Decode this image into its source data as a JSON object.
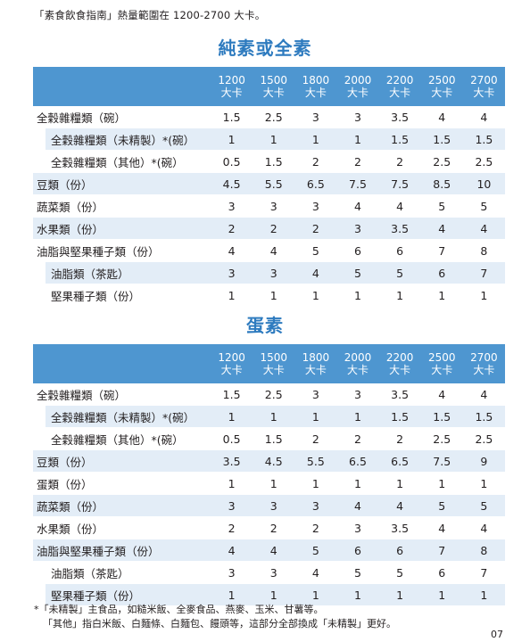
{
  "intro": "「素食飲食指南」熱量範圍在 1200-2700 大卡。",
  "columns": [
    "1200",
    "1500",
    "1800",
    "2000",
    "2200",
    "2500",
    "2700"
  ],
  "unit": "大卡",
  "sections": [
    {
      "title": "純素或全素",
      "rows": [
        {
          "label": "全穀雜糧類（碗）",
          "sub": false,
          "shade": false,
          "values": [
            "1.5",
            "2.5",
            "3",
            "3",
            "3.5",
            "4",
            "4"
          ]
        },
        {
          "label": "全穀雜糧類（未精製）*(碗）",
          "sub": true,
          "shade": true,
          "values": [
            "1",
            "1",
            "1",
            "1",
            "1.5",
            "1.5",
            "1.5"
          ]
        },
        {
          "label": "全穀雜糧類（其他）*(碗）",
          "sub": true,
          "shade": false,
          "values": [
            "0.5",
            "1.5",
            "2",
            "2",
            "2",
            "2.5",
            "2.5"
          ]
        },
        {
          "label": "豆類（份）",
          "sub": false,
          "shade": true,
          "values": [
            "4.5",
            "5.5",
            "6.5",
            "7.5",
            "7.5",
            "8.5",
            "10"
          ]
        },
        {
          "label": "蔬菜類（份）",
          "sub": false,
          "shade": false,
          "values": [
            "3",
            "3",
            "3",
            "4",
            "4",
            "5",
            "5"
          ]
        },
        {
          "label": "水果類（份）",
          "sub": false,
          "shade": true,
          "values": [
            "2",
            "2",
            "2",
            "3",
            "3.5",
            "4",
            "4"
          ]
        },
        {
          "label": "油脂與堅果種子類（份）",
          "sub": false,
          "shade": false,
          "values": [
            "4",
            "4",
            "5",
            "6",
            "6",
            "7",
            "8"
          ]
        },
        {
          "label": "油脂類（茶匙）",
          "sub": true,
          "shade": true,
          "values": [
            "3",
            "3",
            "4",
            "5",
            "5",
            "6",
            "7"
          ]
        },
        {
          "label": "堅果種子類（份）",
          "sub": true,
          "shade": false,
          "values": [
            "1",
            "1",
            "1",
            "1",
            "1",
            "1",
            "1"
          ]
        }
      ]
    },
    {
      "title": "蛋素",
      "rows": [
        {
          "label": "全穀雜糧類（碗）",
          "sub": false,
          "shade": false,
          "values": [
            "1.5",
            "2.5",
            "3",
            "3",
            "3.5",
            "4",
            "4"
          ]
        },
        {
          "label": "全穀雜糧類（未精製）*(碗）",
          "sub": true,
          "shade": true,
          "values": [
            "1",
            "1",
            "1",
            "1",
            "1.5",
            "1.5",
            "1.5"
          ]
        },
        {
          "label": "全穀雜糧類（其他）*(碗）",
          "sub": true,
          "shade": false,
          "values": [
            "0.5",
            "1.5",
            "2",
            "2",
            "2",
            "2.5",
            "2.5"
          ]
        },
        {
          "label": "豆類（份）",
          "sub": false,
          "shade": true,
          "values": [
            "3.5",
            "4.5",
            "5.5",
            "6.5",
            "6.5",
            "7.5",
            "9"
          ]
        },
        {
          "label": "蛋類（份）",
          "sub": false,
          "shade": false,
          "values": [
            "1",
            "1",
            "1",
            "1",
            "1",
            "1",
            "1"
          ]
        },
        {
          "label": "蔬菜類（份）",
          "sub": false,
          "shade": true,
          "values": [
            "3",
            "3",
            "3",
            "4",
            "4",
            "5",
            "5"
          ]
        },
        {
          "label": "水果類（份）",
          "sub": false,
          "shade": false,
          "values": [
            "2",
            "2",
            "2",
            "3",
            "3.5",
            "4",
            "4"
          ]
        },
        {
          "label": "油脂與堅果種子類（份）",
          "sub": false,
          "shade": true,
          "values": [
            "4",
            "4",
            "5",
            "6",
            "6",
            "7",
            "8"
          ]
        },
        {
          "label": "油脂類（茶匙）",
          "sub": true,
          "shade": false,
          "values": [
            "3",
            "3",
            "4",
            "5",
            "5",
            "6",
            "7"
          ]
        },
        {
          "label": "堅果種子類（份）",
          "sub": true,
          "shade": true,
          "values": [
            "1",
            "1",
            "1",
            "1",
            "1",
            "1",
            "1"
          ]
        }
      ]
    }
  ],
  "footnote": {
    "line1": "*「未精製」主食品，如糙米飯、全麥食品、燕麥、玉米、甘薯等。",
    "line2": "「其他」指白米飯、白麵條、白麵包、饅頭等，這部分全部換成「未精製」更好。"
  },
  "page_number": "07"
}
